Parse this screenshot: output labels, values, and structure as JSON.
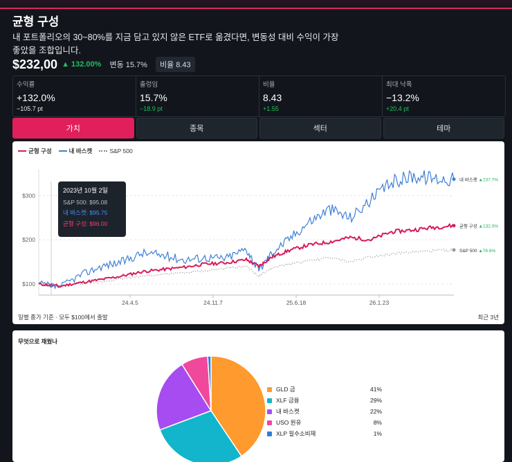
{
  "header": {
    "title": "균형 구성",
    "subtitle": "내 포트폴리오의 30~80%를 지금 담고 있지 않은 ETF로 옮겼다면, 변동성 대비 수익이 가장 좋았을 조합입니다.",
    "price": "$232,00",
    "change": "▲ 132.00%",
    "volatility_chip": "변동 15.7%",
    "ratio_chip": "비율 8.43"
  },
  "stats": [
    {
      "label": "수익률",
      "value": "+132.0%",
      "sub": "−105.7 pt",
      "tone": "neg"
    },
    {
      "label": "출렁임",
      "value": "15.7%",
      "sub": "−18.9 pt",
      "tone": "pos"
    },
    {
      "label": "비율",
      "value": "8.43",
      "sub": "+1.55",
      "tone": "pos"
    },
    {
      "label": "최대 낙폭",
      "value": "−13.2%",
      "sub": "+20.4 pt",
      "tone": "pos"
    }
  ],
  "tabs": [
    {
      "label": "가치",
      "active": true
    },
    {
      "label": "종목",
      "active": false
    },
    {
      "label": "섹터",
      "active": false
    },
    {
      "label": "테마",
      "active": false
    }
  ],
  "chart": {
    "legend": [
      "균형 구성",
      "내 바스켓",
      "S&P 500"
    ],
    "footer_left": "일별 종가 기준 · 모두 $100에서 출발",
    "footer_right": "최근 3년",
    "tooltip": {
      "date": "2023년 10월 2일",
      "sp": "S&P 500: $95.08",
      "basket": "내 바스켓: $95.75",
      "balanced": "균형 구성: $96.00"
    },
    "end_labels": [
      {
        "name": "내 바스켓",
        "change": "▲237.7%"
      },
      {
        "name": "균형 구성",
        "change": "▲132.0%"
      },
      {
        "name": "S&P 500",
        "change": "▲76.6%"
      }
    ]
  },
  "chart_data": {
    "type": "line",
    "y_ticks": [
      "$100",
      "$200",
      "$300"
    ],
    "x_ticks": [
      "24.4.5",
      "24.11.7",
      "25.6.18",
      "26.1.23"
    ],
    "ylim": [
      75,
      360
    ],
    "grid": true,
    "series": [
      {
        "name": "균형 구성",
        "color": "#d81b5a",
        "x": [
          0,
          0.05,
          0.1,
          0.15,
          0.2,
          0.25,
          0.3,
          0.35,
          0.4,
          0.45,
          0.5,
          0.53,
          0.56,
          0.6,
          0.65,
          0.7,
          0.75,
          0.8,
          0.85,
          0.9,
          0.95,
          1.0
        ],
        "values": [
          100,
          95,
          103,
          110,
          118,
          128,
          133,
          138,
          145,
          148,
          155,
          140,
          160,
          175,
          188,
          195,
          205,
          200,
          218,
          222,
          228,
          232
        ]
      },
      {
        "name": "내 바스켓",
        "color": "#3f7fd6",
        "x": [
          0,
          0.05,
          0.1,
          0.15,
          0.2,
          0.25,
          0.3,
          0.35,
          0.4,
          0.45,
          0.5,
          0.53,
          0.56,
          0.6,
          0.65,
          0.7,
          0.75,
          0.8,
          0.85,
          0.9,
          0.95,
          1.0
        ],
        "values": [
          100,
          93,
          120,
          140,
          150,
          170,
          165,
          155,
          160,
          158,
          180,
          130,
          170,
          200,
          240,
          270,
          250,
          290,
          330,
          345,
          340,
          337
        ]
      },
      {
        "name": "S&P 500",
        "color": "#999999",
        "x": [
          0,
          0.05,
          0.1,
          0.15,
          0.2,
          0.25,
          0.3,
          0.35,
          0.4,
          0.45,
          0.5,
          0.53,
          0.56,
          0.6,
          0.65,
          0.7,
          0.75,
          0.8,
          0.85,
          0.9,
          0.95,
          1.0
        ],
        "values": [
          100,
          95,
          100,
          105,
          112,
          118,
          122,
          125,
          130,
          135,
          140,
          118,
          135,
          145,
          152,
          160,
          150,
          162,
          168,
          172,
          175,
          177
        ]
      }
    ]
  },
  "composition": {
    "title": "무엇으로 채웠나",
    "items": [
      {
        "name": "GLD 금",
        "pct": "41%",
        "value": 41,
        "color": "#ff9a2e"
      },
      {
        "name": "XLF 금융",
        "pct": "29%",
        "value": 29,
        "color": "#12b5cb"
      },
      {
        "name": "내 바스켓",
        "pct": "22%",
        "value": 22,
        "color": "#a64cf0"
      },
      {
        "name": "USO 원유",
        "pct": "8%",
        "value": 8,
        "color": "#f0489a"
      },
      {
        "name": "XLP 필수소비재",
        "pct": "1%",
        "value": 1,
        "color": "#2e7fd8"
      }
    ]
  }
}
